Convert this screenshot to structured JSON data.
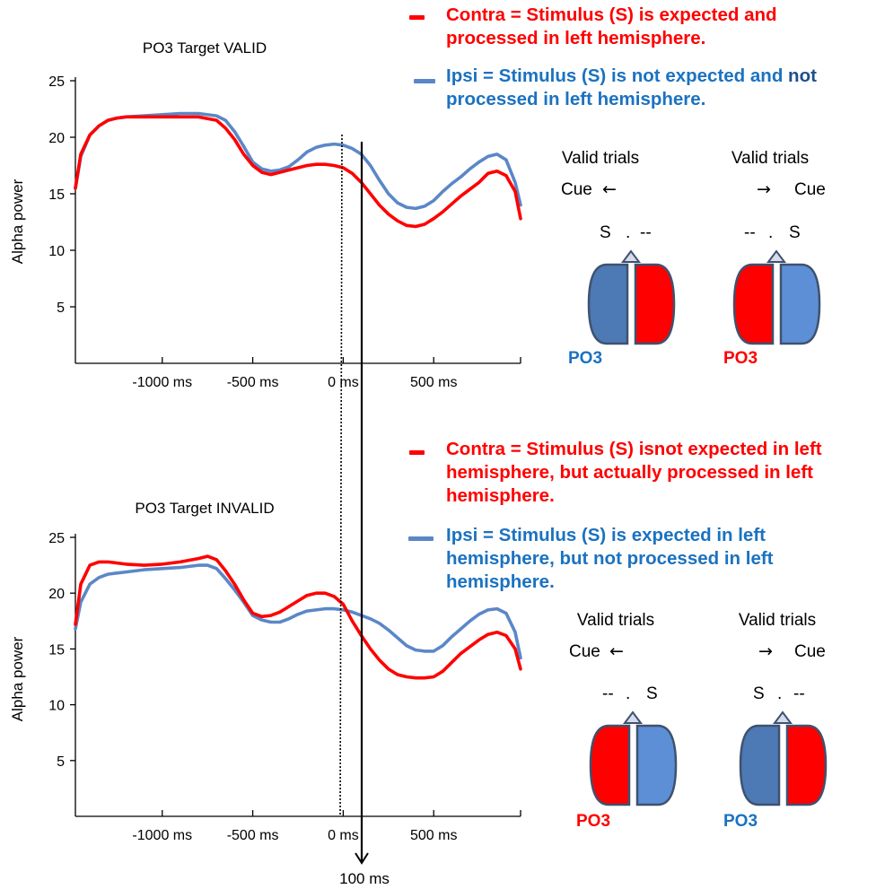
{
  "colors": {
    "contra": "#ff0000",
    "ipsi": "#5b87c7",
    "ipsi_text": "#1b72c0",
    "hemisphere_dark": "#4d79b5",
    "hemisphere_light": "#5d8fd6",
    "hemisphere_red": "#ff0000",
    "outline": "#3e5270",
    "axis": "#000000"
  },
  "chart_data": [
    {
      "type": "line",
      "title": "PO3 Target VALID",
      "xlabel": "",
      "ylabel": "Alpha power",
      "xlim": [
        -1480,
        980
      ],
      "ylim": [
        0,
        25
      ],
      "x_ticks": [
        -1000,
        -500,
        0,
        500
      ],
      "x_tick_labels": [
        "-1000 ms",
        "-500 ms",
        "0 ms",
        "500 ms"
      ],
      "y_ticks": [
        5,
        10,
        15,
        20,
        25
      ],
      "y_tick_labels": [
        "5",
        "10",
        "15",
        "20",
        "25"
      ],
      "grid": false,
      "series": [
        {
          "name": "Contra",
          "color": "#ff0000",
          "x": [
            -1480,
            -1450,
            -1400,
            -1350,
            -1300,
            -1250,
            -1200,
            -1100,
            -1000,
            -900,
            -800,
            -700,
            -650,
            -600,
            -550,
            -500,
            -450,
            -400,
            -350,
            -300,
            -250,
            -200,
            -150,
            -100,
            -50,
            0,
            50,
            100,
            150,
            200,
            250,
            300,
            350,
            400,
            450,
            500,
            550,
            600,
            650,
            700,
            750,
            800,
            850,
            900,
            950,
            980
          ],
          "y": [
            15.5,
            18.5,
            20.2,
            21.0,
            21.5,
            21.7,
            21.8,
            21.8,
            21.8,
            21.8,
            21.8,
            21.5,
            20.8,
            19.8,
            18.5,
            17.5,
            16.9,
            16.7,
            16.9,
            17.1,
            17.3,
            17.5,
            17.6,
            17.6,
            17.5,
            17.3,
            16.8,
            16.0,
            15.0,
            14.0,
            13.2,
            12.6,
            12.2,
            12.1,
            12.3,
            12.8,
            13.4,
            14.1,
            14.8,
            15.4,
            16.0,
            16.8,
            17.0,
            16.6,
            15.2,
            12.8
          ]
        },
        {
          "name": "Ipsi",
          "color": "#5b87c7",
          "x": [
            -1480,
            -1450,
            -1400,
            -1350,
            -1300,
            -1250,
            -1200,
            -1100,
            -1000,
            -900,
            -800,
            -700,
            -650,
            -600,
            -550,
            -500,
            -450,
            -400,
            -350,
            -300,
            -250,
            -200,
            -150,
            -100,
            -50,
            0,
            50,
            100,
            150,
            200,
            250,
            300,
            350,
            400,
            450,
            500,
            550,
            600,
            650,
            700,
            750,
            800,
            850,
            900,
            950,
            980
          ],
          "y": [
            15.5,
            18.3,
            20.2,
            21.0,
            21.5,
            21.7,
            21.8,
            21.9,
            22.0,
            22.1,
            22.1,
            21.9,
            21.5,
            20.5,
            19.2,
            17.8,
            17.2,
            17.0,
            17.1,
            17.4,
            18.0,
            18.7,
            19.1,
            19.3,
            19.4,
            19.3,
            19.0,
            18.5,
            17.5,
            16.2,
            15.0,
            14.2,
            13.8,
            13.7,
            13.9,
            14.4,
            15.2,
            15.9,
            16.5,
            17.2,
            17.8,
            18.3,
            18.5,
            18.0,
            16.0,
            14.0
          ]
        }
      ]
    },
    {
      "type": "line",
      "title": "PO3 Target INVALID",
      "xlabel": "",
      "ylabel": "Alpha power",
      "xlim": [
        -1480,
        980
      ],
      "ylim": [
        0,
        25
      ],
      "x_ticks": [
        -1000,
        -500,
        0,
        500
      ],
      "x_tick_labels": [
        "-1000 ms",
        "-500 ms",
        "0 ms",
        "500 ms"
      ],
      "y_ticks": [
        5,
        10,
        15,
        20,
        25
      ],
      "y_tick_labels": [
        "5",
        "10",
        "15",
        "20",
        "25"
      ],
      "grid": false,
      "series": [
        {
          "name": "Contra",
          "color": "#ff0000",
          "x": [
            -1480,
            -1450,
            -1400,
            -1350,
            -1300,
            -1250,
            -1200,
            -1100,
            -1000,
            -900,
            -800,
            -750,
            -700,
            -650,
            -600,
            -550,
            -500,
            -450,
            -400,
            -350,
            -300,
            -250,
            -200,
            -150,
            -100,
            -50,
            0,
            50,
            100,
            150,
            200,
            250,
            300,
            350,
            400,
            450,
            500,
            550,
            600,
            650,
            700,
            750,
            800,
            850,
            900,
            950,
            980
          ],
          "y": [
            17.2,
            20.8,
            22.5,
            22.8,
            22.8,
            22.7,
            22.6,
            22.5,
            22.6,
            22.8,
            23.1,
            23.3,
            23.0,
            22.0,
            20.8,
            19.4,
            18.2,
            17.9,
            18.0,
            18.3,
            18.8,
            19.3,
            19.8,
            20.0,
            20.0,
            19.7,
            19.0,
            17.5,
            16.2,
            15.0,
            14.0,
            13.2,
            12.7,
            12.5,
            12.4,
            12.4,
            12.5,
            13.0,
            13.8,
            14.6,
            15.2,
            15.8,
            16.3,
            16.5,
            16.2,
            15.0,
            13.2
          ]
        },
        {
          "name": "Ipsi",
          "color": "#5b87c7",
          "x": [
            -1480,
            -1450,
            -1400,
            -1350,
            -1300,
            -1250,
            -1200,
            -1100,
            -1000,
            -900,
            -800,
            -750,
            -700,
            -650,
            -600,
            -550,
            -500,
            -450,
            -400,
            -350,
            -300,
            -250,
            -200,
            -150,
            -100,
            -50,
            0,
            50,
            100,
            150,
            200,
            250,
            300,
            350,
            400,
            450,
            500,
            550,
            600,
            650,
            700,
            750,
            800,
            850,
            900,
            950,
            980
          ],
          "y": [
            16.8,
            19.2,
            20.8,
            21.4,
            21.7,
            21.8,
            21.9,
            22.1,
            22.2,
            22.3,
            22.5,
            22.5,
            22.2,
            21.3,
            20.3,
            19.2,
            18.0,
            17.6,
            17.4,
            17.4,
            17.7,
            18.1,
            18.4,
            18.5,
            18.6,
            18.6,
            18.5,
            18.3,
            18.0,
            17.7,
            17.3,
            16.7,
            16.0,
            15.3,
            14.9,
            14.8,
            14.8,
            15.3,
            16.1,
            16.8,
            17.5,
            18.1,
            18.5,
            18.6,
            18.2,
            16.5,
            14.2
          ]
        }
      ]
    }
  ],
  "legends": [
    {
      "contra_text": "Contra = Stimulus (S) is expected and processed in left hemisphere.",
      "ipsi_text_before": "Ipsi = Stimulus (S) is not expected and ",
      "ipsi_not": "not",
      "ipsi_text_after": " processed in left hemisphere."
    },
    {
      "contra_text": "Contra = Stimulus (S) isnot expected in left hemisphere, but actually processed in left hemisphere.",
      "ipsi_text": "Ipsi = Stimulus (S) is expected in left hemisphere, but not processed in left hemisphere."
    }
  ],
  "diagrams": [
    {
      "left": {
        "trials": "Valid trials",
        "cue": "Cue",
        "arrow": "←",
        "stimulus_left": "S",
        "dot": ".",
        "stimulus_right": "--",
        "electrode": "PO3",
        "electrode_color": "#1b72c0"
      },
      "right": {
        "trials": "Valid trials",
        "cue": "Cue",
        "arrow": "→",
        "stimulus_left": "--",
        "dot": ".",
        "stimulus_right": "S",
        "electrode": "PO3",
        "electrode_color": "#ff0000"
      }
    },
    {
      "left": {
        "trials": "Valid trials",
        "cue": "Cue",
        "arrow": "←",
        "stimulus_left": "--",
        "dot": ".",
        "stimulus_right": "S",
        "electrode": "PO3",
        "electrode_color": "#ff0000"
      },
      "right": {
        "trials": "Valid trials",
        "cue": "Cue",
        "arrow": "→",
        "stimulus_left": "S",
        "dot": ".",
        "stimulus_right": "--",
        "electrode": "PO3",
        "electrode_color": "#1b72c0"
      }
    }
  ],
  "marker_label": "100 ms"
}
